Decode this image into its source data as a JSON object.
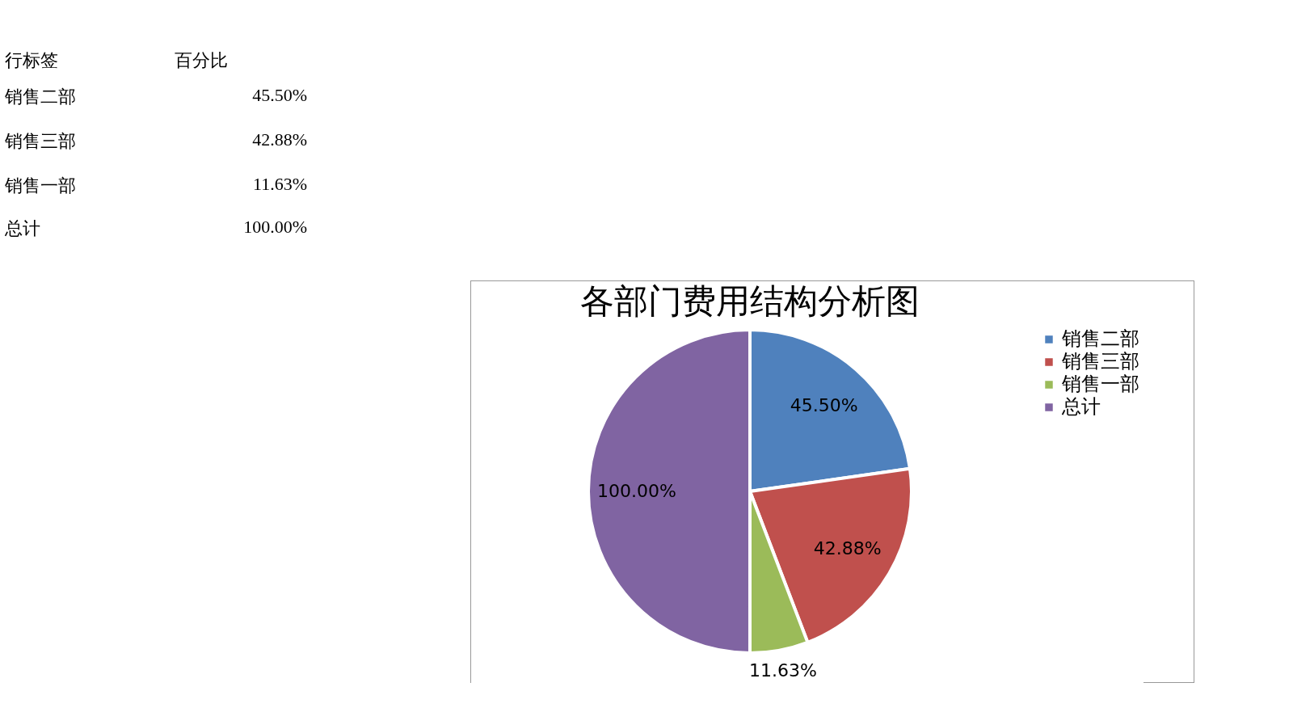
{
  "chart_data": [
    {
      "type": "other",
      "annotations": [
        "行标签",
        "百分比",
        "销售二部",
        "45.50%",
        "销售三部",
        "42.88%",
        "销售一部",
        "11.63%",
        "总计",
        "100.00%"
      ]
    },
    {
      "type": "pie",
      "title": "各部门费用结构分析图",
      "categories": [
        "销售二部",
        "销售三部",
        "销售一部",
        "总计"
      ],
      "values": [
        45.5,
        42.88,
        11.63,
        100
      ],
      "colors": [
        "#4f81bd",
        "#c0504d",
        "#9bbb59",
        "#8064a2"
      ],
      "value_labels": [
        "45.50%",
        "42.88%",
        "11.63%",
        "100.00%"
      ],
      "legend": "right"
    }
  ]
}
